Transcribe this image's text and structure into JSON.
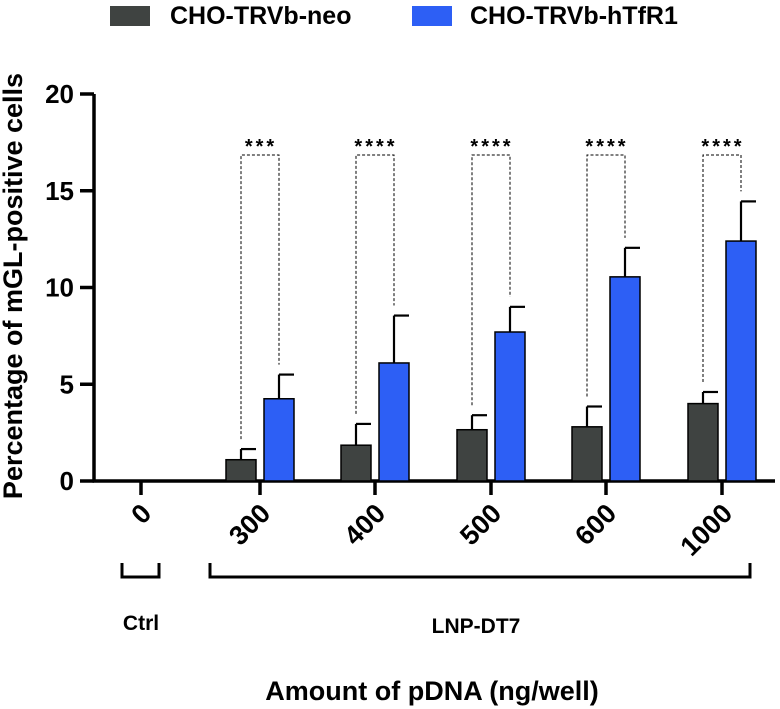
{
  "chart_data": {
    "type": "bar",
    "title": "",
    "xlabel": "Amount of pDNA (ng/well)",
    "ylabel": "Percentage of mGL-positive cells",
    "ylim": [
      0,
      20
    ],
    "yticks": [
      0,
      5,
      10,
      15,
      20
    ],
    "categories": [
      "0",
      "300",
      "400",
      "500",
      "600",
      "1000"
    ],
    "series": [
      {
        "name": "CHO-TRVb-neo",
        "color": "#3f4341",
        "values": [
          0,
          1.1,
          1.85,
          2.65,
          2.8,
          4.0
        ],
        "errors": [
          0,
          0.55,
          1.1,
          0.75,
          1.05,
          0.6
        ]
      },
      {
        "name": "CHO-TRVb-hTfR1",
        "color": "#2d5ff5",
        "values": [
          0,
          4.25,
          6.1,
          7.7,
          10.55,
          12.4
        ],
        "errors": [
          0,
          1.25,
          2.45,
          1.3,
          1.5,
          2.05
        ]
      }
    ],
    "significance": [
      "",
      "***",
      "****",
      "****",
      "****",
      "****"
    ],
    "groups": [
      {
        "label": "Ctrl",
        "categories": [
          "0"
        ]
      },
      {
        "label": "LNP-DT7",
        "categories": [
          "300",
          "400",
          "500",
          "600",
          "1000"
        ]
      }
    ],
    "legend": "top"
  }
}
